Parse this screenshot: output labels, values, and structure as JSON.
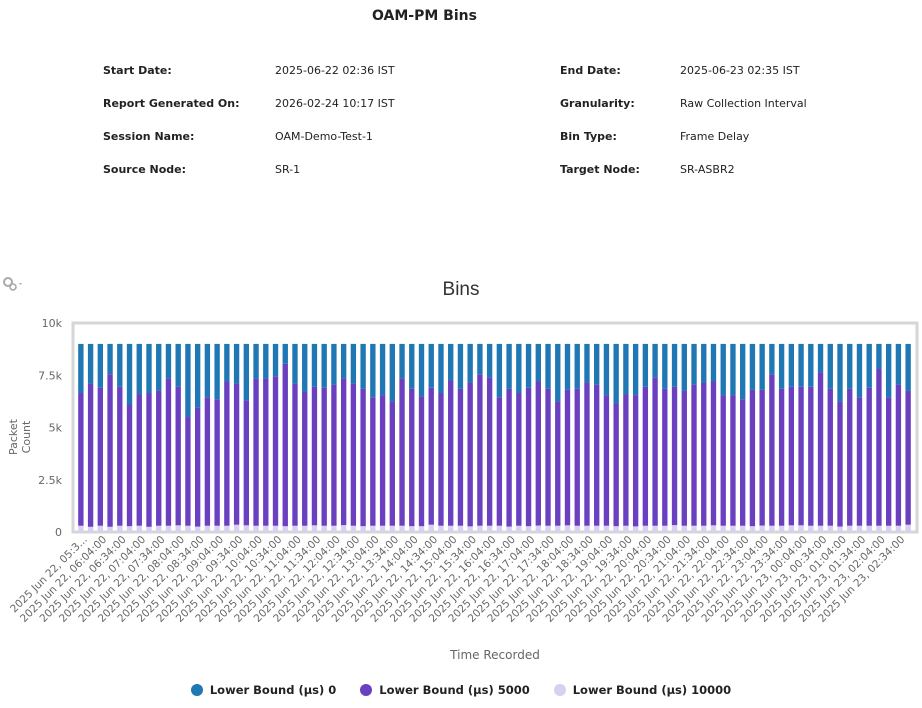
{
  "report": {
    "title": "OAM-PM Bins",
    "fields": [
      {
        "label": "Start Date:",
        "value": "2025-06-22 02:36 IST"
      },
      {
        "label": "End Date:",
        "value": "2025-06-23 02:35 IST"
      },
      {
        "label": "Report Generated On:",
        "value": "2026-02-24 10:17 IST"
      },
      {
        "label": "Granularity:",
        "value": "Raw Collection Interval"
      },
      {
        "label": "Session Name:",
        "value": "OAM-Demo-Test-1"
      },
      {
        "label": "Bin Type:",
        "value": "Frame Delay"
      },
      {
        "label": "Source Node:",
        "value": "SR-1"
      },
      {
        "label": "Target Node:",
        "value": "SR-ASBR2"
      }
    ]
  },
  "toolbar": {
    "settings_icon": "gear-icon"
  },
  "chart_data": {
    "type": "bar",
    "stacked": true,
    "title": "Bins",
    "xlabel": "Time Recorded",
    "ylabel": "Packet Count",
    "ylim": [
      0,
      10000
    ],
    "yticks": [
      0,
      2500,
      5000,
      7500,
      10000
    ],
    "ytick_labels": [
      "0",
      "2.5k",
      "5k",
      "7.5k",
      "10k"
    ],
    "xtick_labels": [
      "2025 Jun 22, 05:3...",
      "2025 Jun 22, 06:04:00",
      "2025 Jun 22, 06:34:00",
      "2025 Jun 22, 07:04:00",
      "2025 Jun 22, 07:34:00",
      "2025 Jun 22, 08:04:00",
      "2025 Jun 22, 08:34:00",
      "2025 Jun 22, 09:04:00",
      "2025 Jun 22, 09:34:00",
      "2025 Jun 22, 10:04:00",
      "2025 Jun 22, 10:34:00",
      "2025 Jun 22, 11:04:00",
      "2025 Jun 22, 11:34:00",
      "2025 Jun 22, 12:04:00",
      "2025 Jun 22, 12:34:00",
      "2025 Jun 22, 13:04:00",
      "2025 Jun 22, 13:34:00",
      "2025 Jun 22, 14:04:00",
      "2025 Jun 22, 14:34:00",
      "2025 Jun 22, 15:04:00",
      "2025 Jun 22, 15:34:00",
      "2025 Jun 22, 16:04:00",
      "2025 Jun 22, 16:34:00",
      "2025 Jun 22, 17:04:00",
      "2025 Jun 22, 17:34:00",
      "2025 Jun 22, 18:04:00",
      "2025 Jun 22, 18:34:00",
      "2025 Jun 22, 19:04:00",
      "2025 Jun 22, 19:34:00",
      "2025 Jun 22, 20:04:00",
      "2025 Jun 22, 20:34:00",
      "2025 Jun 22, 21:04:00",
      "2025 Jun 22, 21:34:00",
      "2025 Jun 22, 22:04:00",
      "2025 Jun 22, 22:34:00",
      "2025 Jun 22, 23:04:00",
      "2025 Jun 22, 23:34:00",
      "2025 Jun 23, 00:04:00",
      "2025 Jun 23, 00:34:00",
      "2025 Jun 23, 01:04:00",
      "2025 Jun 23, 01:34:00",
      "2025 Jun 23, 02:04:00",
      "2025 Jun 23, 02:34:00"
    ],
    "totals": 9000,
    "series": [
      {
        "name": "Lower Bound (µs) 0",
        "color": "#1f77b4"
      },
      {
        "name": "Lower Bound (µs) 5000",
        "color": "#6a3fc0"
      },
      {
        "name": "Lower Bound (µs) 10000",
        "color": "#d9cff0"
      }
    ],
    "bottom_values": [
      300,
      250,
      300,
      250,
      300,
      280,
      300,
      250,
      300,
      300,
      320,
      300,
      260,
      300,
      300,
      300,
      350,
      320,
      300,
      300,
      300,
      280,
      300,
      300,
      320,
      300,
      300,
      330,
      300,
      280,
      300,
      300,
      300,
      300,
      280,
      280,
      350,
      300,
      300,
      300,
      270,
      300,
      300,
      300,
      260,
      300,
      280,
      310,
      300,
      300,
      320,
      300,
      300,
      300,
      300,
      280,
      300,
      270,
      300,
      300,
      300,
      330,
      300,
      300,
      300,
      320,
      300,
      300,
      300,
      280,
      310,
      300,
      300,
      320,
      320,
      300,
      300,
      300,
      260,
      300,
      300,
      300,
      300,
      300,
      300,
      350,
      300,
      300,
      300,
      300,
      300,
      300,
      300,
      300,
      320
    ],
    "top_of_middle": [
      6650,
      7100,
      6900,
      7550,
      6950,
      6100,
      6600,
      6650,
      6750,
      7350,
      6950,
      5500,
      5950,
      6450,
      6350,
      7200,
      7100,
      6300,
      7350,
      7350,
      7450,
      8050,
      7100,
      6700,
      6950,
      6900,
      7050,
      7350,
      7100,
      6850,
      6450,
      6550,
      6250,
      7350,
      6850,
      6500,
      6900,
      6650,
      7250,
      6850,
      7150,
      7550,
      7400,
      6450,
      6850,
      6650,
      6900,
      7200,
      6850,
      6250,
      6800,
      6850,
      7150,
      7050,
      6550,
      6150,
      6600,
      6550,
      6950,
      7400,
      6850,
      6950,
      6750,
      7050,
      7150,
      7200,
      6550,
      6550,
      6350,
      6800,
      6800,
      7550,
      6850,
      6950,
      6950,
      6950,
      7650,
      6850,
      6250,
      6850,
      6450,
      6900,
      7800,
      6450,
      7050,
      6750
    ]
  },
  "legend": {
    "items": [
      {
        "label": "Lower Bound (µs) 0",
        "color": "#1f77b4"
      },
      {
        "label": "Lower Bound (µs) 5000",
        "color": "#6a3fc0"
      },
      {
        "label": "Lower Bound (µs) 10000",
        "color": "#d9cff0"
      }
    ]
  }
}
